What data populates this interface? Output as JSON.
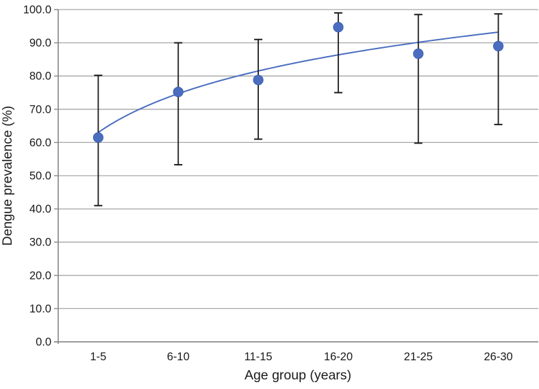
{
  "figure": {
    "background": "#ffffff",
    "description": "Scatter plot of dengue prevalence by age group with 95% confidence-interval error bars and a logarithmic trend line"
  },
  "chart_data": {
    "type": "scatter",
    "title": "",
    "xlabel": "Age group (years)",
    "ylabel": "Dengue prevalence (%)",
    "categories": [
      "1-5",
      "6-10",
      "11-15",
      "16-20",
      "21-25",
      "26-30"
    ],
    "series": [
      {
        "name": "Dengue prevalence",
        "values": [
          61.5,
          75.2,
          78.8,
          94.7,
          86.7,
          89.0
        ],
        "error_low": [
          41.0,
          53.3,
          61.0,
          75.0,
          59.8,
          65.4
        ],
        "error_high": [
          80.2,
          90.0,
          91.0,
          99.0,
          98.5,
          98.7
        ]
      }
    ],
    "trendline": {
      "type": "logarithmic",
      "values_at_categories": [
        63.0,
        74.8,
        81.6,
        86.4,
        90.2,
        93.2
      ]
    },
    "ylim": [
      0,
      100
    ],
    "ytick_step": 10,
    "ytick_labels": [
      "0.0",
      "10.0",
      "20.0",
      "30.0",
      "40.0",
      "50.0",
      "60.0",
      "70.0",
      "80.0",
      "90.0",
      "100.0"
    ],
    "grid": "horizontal-only",
    "legend": "none",
    "colors": {
      "marker": "#4a6dc0",
      "marker_edge": "#3a5ba9",
      "trendline": "#4a6dc0",
      "errorbar": "#1a1a1a",
      "gridline": "#a6a6a6",
      "axis": "#8c8c8c",
      "text": "#1a1a1a"
    }
  }
}
